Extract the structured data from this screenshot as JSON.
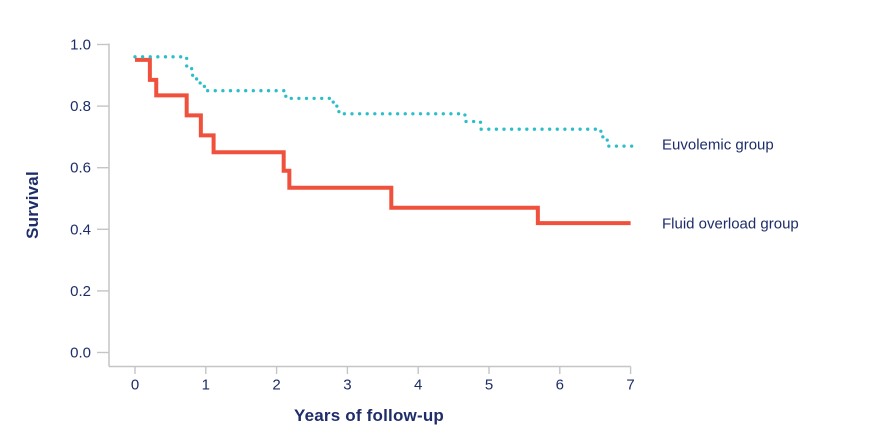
{
  "colors": {
    "background": "#ffffff",
    "axis": "#c3c5c6",
    "text_navy": "#1e2d69",
    "euvolemic": "#2abec9",
    "fluid_overload": "#f0513c"
  },
  "chart_data": {
    "type": "line",
    "chart_kind": "kaplan-meier-step",
    "title": "",
    "xlabel": "Years of follow-up",
    "ylabel": "Survival",
    "xlim": [
      0,
      7
    ],
    "ylim": [
      0.0,
      1.0
    ],
    "x_ticks": [
      0,
      1,
      2,
      3,
      4,
      5,
      6,
      7
    ],
    "x_tick_labels": [
      "0",
      "1",
      "2",
      "3",
      "4",
      "5",
      "6",
      "7"
    ],
    "y_ticks": [
      0.0,
      0.2,
      0.4,
      0.6,
      0.8,
      1.0
    ],
    "y_tick_labels": [
      "0.0",
      "0.2",
      "0.4",
      "0.6",
      "0.8",
      "1.0"
    ],
    "grid": false,
    "legend_position": "right-of-curve-ends",
    "legend": [
      "Euvolemic group",
      "Fluid overload group"
    ],
    "series": [
      {
        "name": "Euvolemic group",
        "color": "#2abec9",
        "line_style": "dotted",
        "x": [
          0,
          0.73,
          0.8,
          0.87,
          0.98,
          2.13,
          2.8,
          2.88,
          4.66,
          4.88,
          6.58,
          6.67
        ],
        "y": [
          0.96,
          0.93,
          0.9,
          0.875,
          0.85,
          0.825,
          0.8,
          0.775,
          0.75,
          0.725,
          0.7,
          0.67
        ],
        "x_end": 7.03
      },
      {
        "name": "Fluid overload group",
        "color": "#f0513c",
        "line_style": "solid",
        "x": [
          0,
          0.21,
          0.3,
          0.73,
          0.93,
          1.11,
          2.1,
          2.18,
          3.62,
          5.69
        ],
        "y": [
          0.95,
          0.885,
          0.835,
          0.77,
          0.705,
          0.65,
          0.59,
          0.535,
          0.47,
          0.42
        ],
        "x_end": 7.0
      }
    ]
  }
}
